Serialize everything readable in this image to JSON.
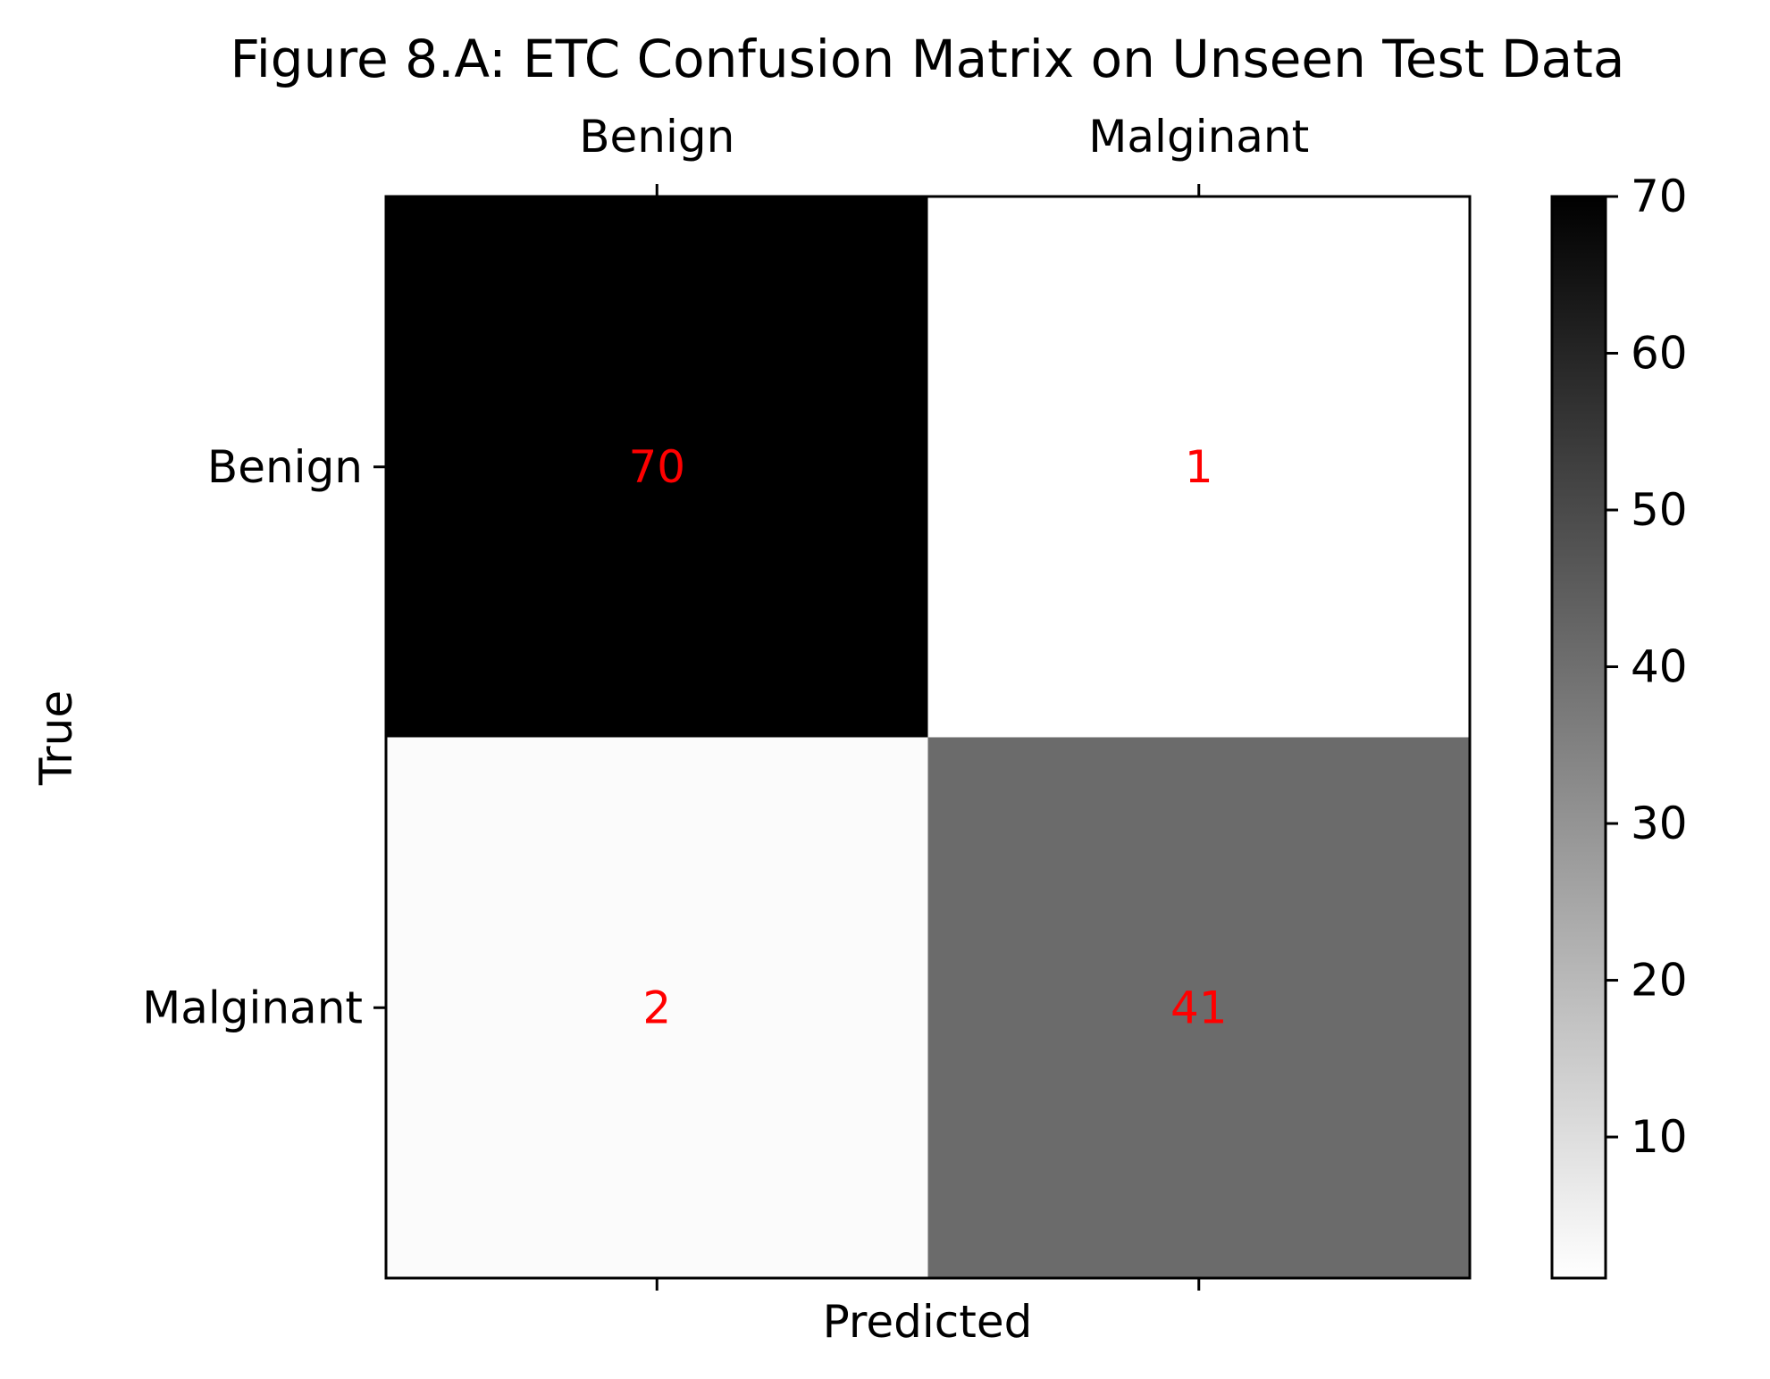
{
  "chart_data": {
    "type": "heatmap",
    "title": "Figure 8.A: ETC Confusion Matrix on Unseen Test Data",
    "xlabel": "Predicted",
    "ylabel": "True",
    "x_categories": [
      "Benign",
      "Malginant"
    ],
    "y_categories": [
      "Benign",
      "Malginant"
    ],
    "values": [
      [
        70,
        1
      ],
      [
        2,
        41
      ]
    ],
    "colormap": "grayscale (white = low, black = high)",
    "color_range": [
      1,
      70
    ],
    "colorbar_ticks": [
      10,
      20,
      30,
      40,
      50,
      60,
      70
    ],
    "annotation_color": "#ff0000",
    "x_tick_position": "top"
  }
}
